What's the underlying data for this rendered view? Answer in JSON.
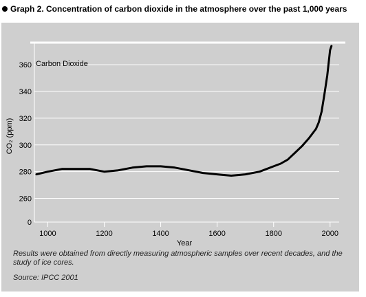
{
  "heading": {
    "title": "Graph 2. Concentration of carbon dioxide in the atmosphere over the past 1,000 years"
  },
  "chart_data": {
    "type": "line",
    "title": "Carbon Dioxide",
    "xlabel": "Year",
    "ylabel": "CO₂ (ppm)",
    "xlim": [
      960,
      2020
    ],
    "ylim": [
      250,
      375
    ],
    "x_ticks": [
      1000,
      1200,
      1400,
      1600,
      1800,
      2000
    ],
    "y_ticks": [
      0,
      260,
      280,
      300,
      320,
      340,
      360
    ],
    "axis_break": true,
    "grid": "horizontal",
    "series": [
      {
        "color": "#000000",
        "x": [
          960,
          1000,
          1050,
          1100,
          1150,
          1200,
          1250,
          1300,
          1350,
          1400,
          1450,
          1500,
          1550,
          1600,
          1650,
          1700,
          1750,
          1800,
          1825,
          1850,
          1875,
          1900,
          1925,
          1950,
          1960,
          1970,
          1980,
          1990,
          2000,
          2005
        ],
        "y": [
          278,
          280,
          282,
          282,
          282,
          280,
          281,
          283,
          284,
          284,
          283,
          281,
          279,
          278,
          277,
          278,
          280,
          284,
          286,
          289,
          294,
          299,
          305,
          312,
          317,
          325,
          338,
          352,
          371,
          374
        ]
      }
    ]
  },
  "notes": {
    "caption": "Results were obtained from directly measuring atmospheric samples over recent decades, and the study of ice cores.",
    "source": "Source: IPCC 2001"
  }
}
